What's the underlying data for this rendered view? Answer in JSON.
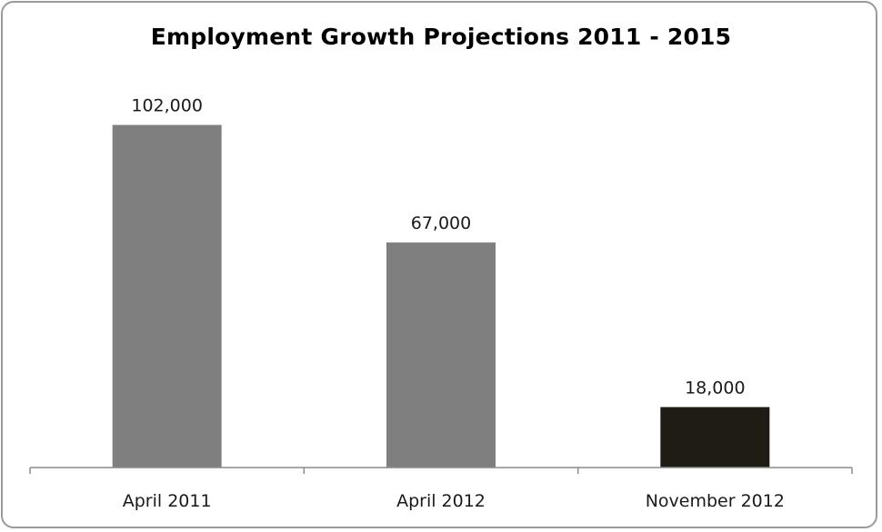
{
  "chart_data": {
    "type": "bar",
    "title": "Employment Growth Projections 2011 - 2015",
    "categories": [
      "April 2011",
      "April 2012",
      "November 2012"
    ],
    "values": [
      102000,
      67000,
      18000
    ],
    "data_labels": [
      "102,000",
      "67,000",
      "18,000"
    ],
    "bar_colors": [
      "#7f7f7f",
      "#7f7f7f",
      "#1e1c14"
    ],
    "xlabel": "",
    "ylabel": "",
    "ylim": [
      0,
      110000
    ],
    "grid": false,
    "legend": "none"
  }
}
